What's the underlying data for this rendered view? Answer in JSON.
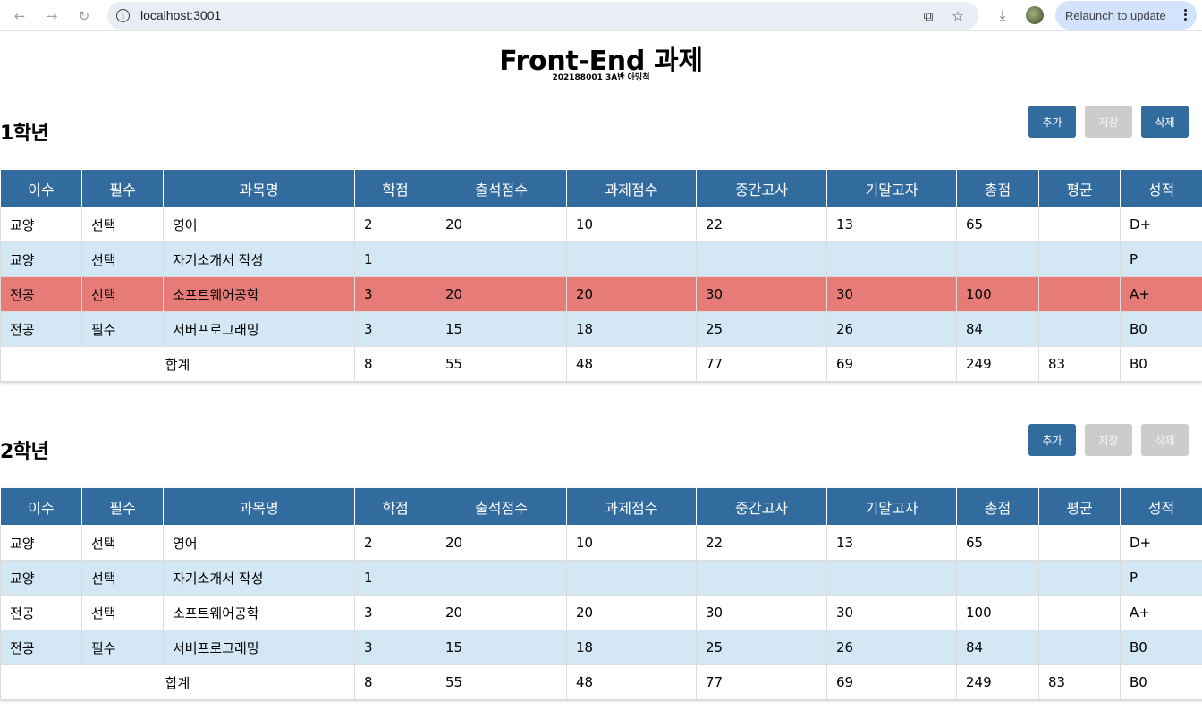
{
  "browser": {
    "url": "localhost:3001",
    "relaunch_label": "Relaunch to update"
  },
  "page": {
    "title": "Front-End 과제",
    "subtitle": "202188001 3A반 아밍척"
  },
  "columns": [
    "이수",
    "필수",
    "과목명",
    "학점",
    "출석점수",
    "과제점수",
    "중간고사",
    "기말고자",
    "총점",
    "평균",
    "성적"
  ],
  "sections": [
    {
      "title": "1학년",
      "buttons": {
        "add": "추가",
        "save": "저장",
        "delete": "삭제"
      },
      "rows": [
        [
          "교양",
          "선택",
          "영어",
          "2",
          "20",
          "10",
          "22",
          "13",
          "65",
          "",
          "D+"
        ],
        [
          "교양",
          "선택",
          "자기소개서 작성",
          "1",
          "",
          "",
          "",
          "",
          "",
          "",
          "P"
        ],
        [
          "전공",
          "선택",
          "소프트웨어공학",
          "3",
          "20",
          "20",
          "30",
          "30",
          "100",
          "",
          "A+"
        ],
        [
          "전공",
          "필수",
          "서버프로그래밍",
          "3",
          "15",
          "18",
          "25",
          "26",
          "84",
          "",
          "B0"
        ]
      ],
      "total": {
        "label": "합계",
        "values": [
          "8",
          "55",
          "48",
          "77",
          "69",
          "249",
          "83",
          "B0"
        ]
      }
    },
    {
      "title": "2학년",
      "buttons": {
        "add": "추가",
        "save": "저장",
        "delete": "삭제"
      },
      "rows": [
        [
          "교양",
          "선택",
          "영어",
          "2",
          "20",
          "10",
          "22",
          "13",
          "65",
          "",
          "D+"
        ],
        [
          "교양",
          "선택",
          "자기소개서 작성",
          "1",
          "",
          "",
          "",
          "",
          "",
          "",
          "P"
        ],
        [
          "전공",
          "선택",
          "소프트웨어공학",
          "3",
          "20",
          "20",
          "30",
          "30",
          "100",
          "",
          "A+"
        ],
        [
          "전공",
          "필수",
          "서버프로그래밍",
          "3",
          "15",
          "18",
          "25",
          "26",
          "84",
          "",
          "B0"
        ]
      ],
      "total": {
        "label": "합계",
        "values": [
          "8",
          "55",
          "48",
          "77",
          "69",
          "249",
          "83",
          "B0"
        ]
      }
    }
  ],
  "colors": {
    "header": "#326b9e",
    "alt_row": "#d3e8f4",
    "selected_row": "#e77b78",
    "disabled_button": "#cccccc"
  }
}
